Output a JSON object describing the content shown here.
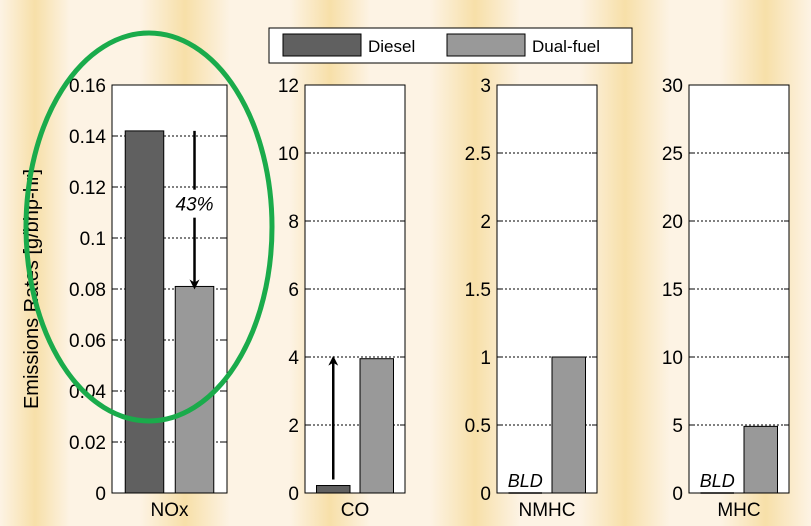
{
  "colors": {
    "background": "#fdf3e4",
    "stripe": "#f6dc9e",
    "diesel": "#606060",
    "dual_fuel": "#999999",
    "highlight_ellipse": "#1aab4b"
  },
  "legend": {
    "position": "top",
    "items": [
      {
        "label": "Diesel",
        "color": "#606060"
      },
      {
        "label": "Dual-fuel",
        "color": "#999999"
      }
    ]
  },
  "chart_data": [
    {
      "type": "bar",
      "categories": [
        "NOx"
      ],
      "series": [
        {
          "name": "Diesel",
          "values": [
            0.142
          ]
        },
        {
          "name": "Dual-fuel",
          "values": [
            0.081
          ]
        }
      ],
      "ylabel": "Emissions Rates [g/bhp-hr]",
      "ylim": [
        0,
        0.16
      ],
      "yticks": [
        "0",
        "0.02",
        "0.04",
        "0.06",
        "0.08",
        "0.1",
        "0.12",
        "0.14",
        "0.16"
      ],
      "grid": true,
      "annotations": [
        {
          "text": "43%",
          "arrow": "down"
        }
      ],
      "highlighted": true
    },
    {
      "type": "bar",
      "categories": [
        "CO"
      ],
      "series": [
        {
          "name": "Diesel",
          "values": [
            0.22
          ]
        },
        {
          "name": "Dual-fuel",
          "values": [
            3.95
          ]
        }
      ],
      "ylim": [
        0,
        12
      ],
      "yticks": [
        "0",
        "2",
        "4",
        "6",
        "8",
        "10",
        "12"
      ],
      "grid": true,
      "annotations": [
        {
          "text": "",
          "arrow": "up"
        }
      ]
    },
    {
      "type": "bar",
      "categories": [
        "NMHC"
      ],
      "series": [
        {
          "name": "Diesel",
          "values": [
            0
          ],
          "label": "BLD"
        },
        {
          "name": "Dual-fuel",
          "values": [
            1.0
          ]
        }
      ],
      "ylim": [
        0,
        3
      ],
      "yticks": [
        "0",
        "0.5",
        "1",
        "1.5",
        "2",
        "2.5",
        "3"
      ],
      "grid": true
    },
    {
      "type": "bar",
      "categories": [
        "MHC"
      ],
      "series": [
        {
          "name": "Diesel",
          "values": [
            0
          ],
          "label": "BLD"
        },
        {
          "name": "Dual-fuel",
          "values": [
            4.9
          ]
        }
      ],
      "ylim": [
        0,
        30
      ],
      "yticks": [
        "0",
        "5",
        "10",
        "15",
        "20",
        "25",
        "30"
      ],
      "grid": true
    }
  ]
}
